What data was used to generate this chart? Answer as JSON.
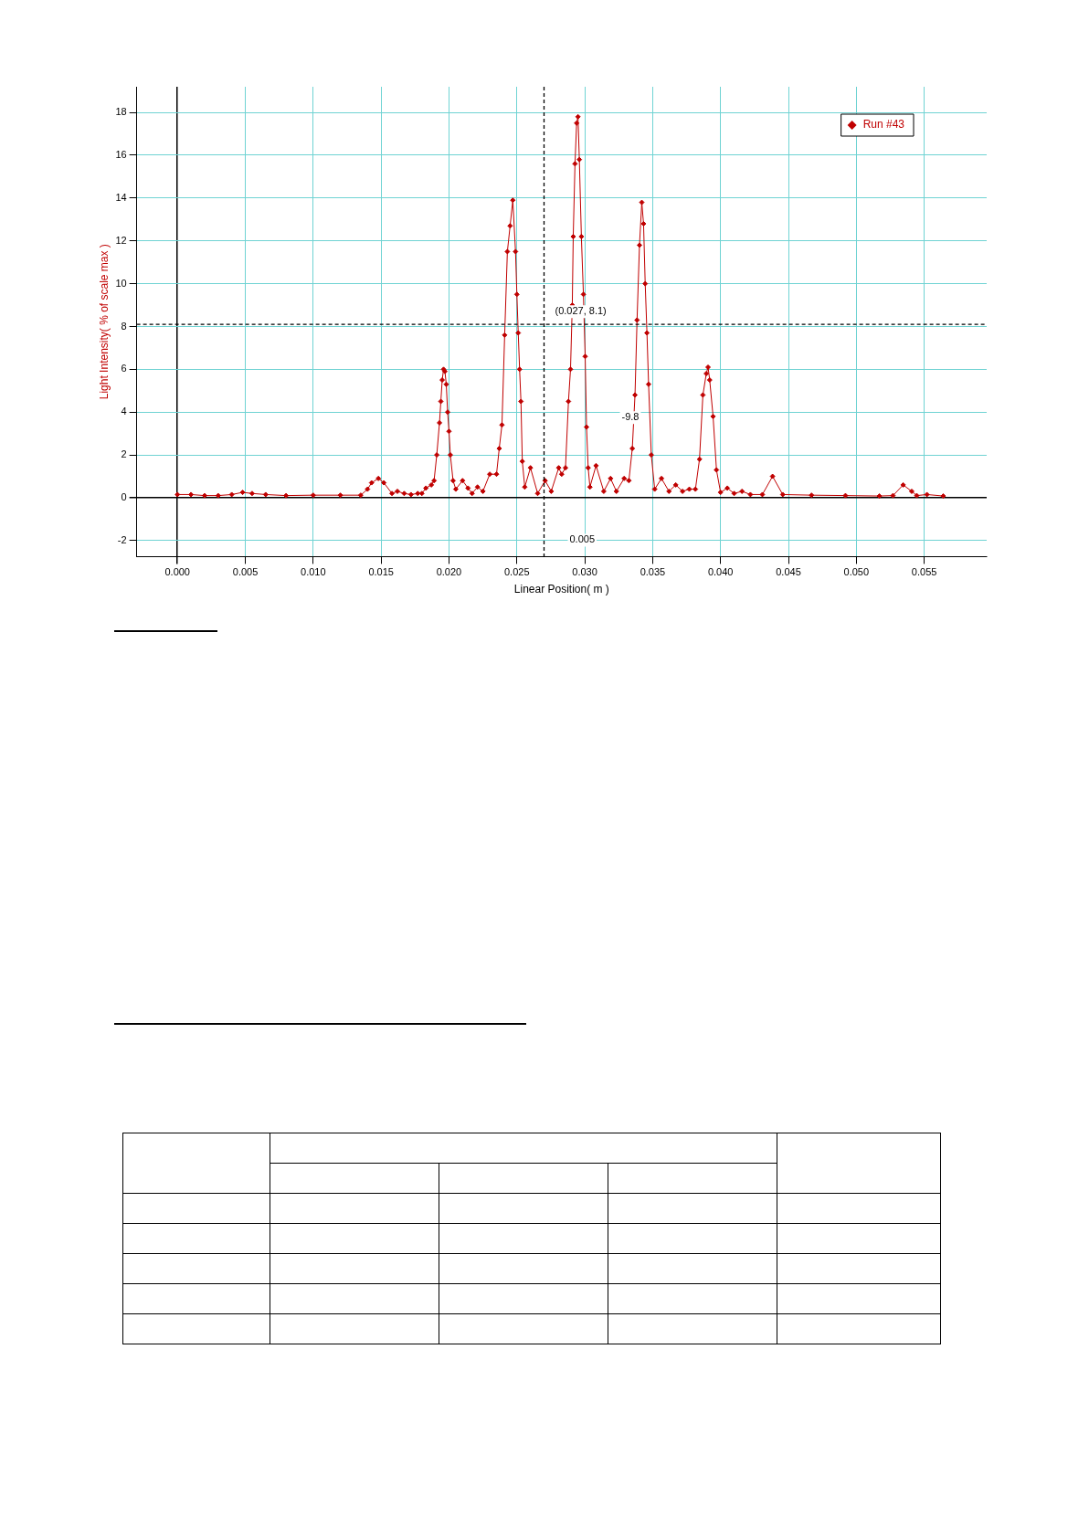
{
  "chart_data": {
    "type": "line",
    "xlabel": "Linear Position( m )",
    "ylabel": "Light Intensity( % of scale max )",
    "xlim": [
      -0.003,
      0.0596
    ],
    "ylim": [
      -2.75,
      19.2
    ],
    "xticks": [
      {
        "value": 0,
        "label": "0.000"
      },
      0.005,
      {
        "value": 0.01,
        "label": "0.010"
      },
      0.015,
      {
        "value": 0.02,
        "label": "0.020"
      },
      0.025,
      {
        "value": 0.03,
        "label": "0.030"
      },
      0.035,
      {
        "value": 0.04,
        "label": "0.040"
      },
      0.045,
      {
        "value": 0.05,
        "label": "0.050"
      },
      0.055
    ],
    "yticks": [
      -2,
      0,
      2,
      4,
      6,
      8,
      10,
      12,
      14,
      16,
      18
    ],
    "grid": true,
    "legend": "top right",
    "marker": "diamond",
    "line_style": "solid",
    "series": [
      {
        "name": "Run #43",
        "color": "#c00000",
        "x": [
          0,
          0.001,
          0.002,
          0.003,
          0.004,
          0.0048,
          0.0055,
          0.0065,
          0.008,
          0.01,
          0.012,
          0.0135,
          0.014,
          0.0143,
          0.0148,
          0.0152,
          0.0158,
          0.0162,
          0.0167,
          0.0172,
          0.0177,
          0.018,
          0.0183,
          0.0187,
          0.0189,
          0.0191,
          0.0193,
          0.0194,
          0.0195,
          0.0196,
          0.0197,
          0.0198,
          0.0199,
          0.02,
          0.0201,
          0.0203,
          0.0205,
          0.021,
          0.0214,
          0.0217,
          0.0221,
          0.0225,
          0.023,
          0.0235,
          0.0237,
          0.0239,
          0.0241,
          0.0243,
          0.0245,
          0.0247,
          0.0249,
          0.025,
          0.0251,
          0.0252,
          0.0253,
          0.0254,
          0.02558,
          0.026,
          0.02653,
          0.02708,
          0.02753,
          0.02808,
          0.0283,
          0.02858,
          0.0288,
          0.02895,
          0.02908,
          0.02915,
          0.02928,
          0.0294,
          0.0295,
          0.0296,
          0.02975,
          0.0299,
          0.03003,
          0.03013,
          0.03025,
          0.03038,
          0.03083,
          0.0314,
          0.0319,
          0.03233,
          0.0329,
          0.03325,
          0.0335,
          0.0337,
          0.03385,
          0.03403,
          0.0342,
          0.03433,
          0.03445,
          0.03458,
          0.0347,
          0.0349,
          0.03515,
          0.03565,
          0.0362,
          0.0367,
          0.0372,
          0.0377,
          0.03815,
          0.03845,
          0.0387,
          0.03895,
          0.03908,
          0.0392,
          0.03945,
          0.0397,
          0.04,
          0.0405,
          0.041,
          0.04158,
          0.0422,
          0.04308,
          0.04383,
          0.04458,
          0.0467,
          0.0492,
          0.0517,
          0.0527,
          0.05345,
          0.05408,
          0.05445,
          0.0552,
          0.0564
        ],
        "values": [
          0.15,
          0.15,
          0.1,
          0.1,
          0.15,
          0.25,
          0.2,
          0.15,
          0.1,
          0.12,
          0.12,
          0.12,
          0.4,
          0.7,
          0.9,
          0.7,
          0.2,
          0.3,
          0.2,
          0.15,
          0.2,
          0.2,
          0.45,
          0.6,
          0.8,
          2.0,
          3.5,
          4.5,
          5.5,
          6.0,
          5.9,
          5.3,
          4.0,
          3.1,
          2.0,
          0.8,
          0.4,
          0.8,
          0.45,
          0.2,
          0.5,
          0.3,
          1.1,
          1.1,
          2.3,
          3.4,
          7.6,
          11.5,
          12.7,
          13.9,
          11.5,
          9.5,
          7.7,
          6.0,
          4.5,
          1.7,
          0.5,
          1.4,
          0.2,
          0.8,
          0.3,
          1.4,
          1.1,
          1.4,
          4.5,
          6.0,
          9.0,
          12.2,
          15.6,
          17.5,
          17.8,
          15.8,
          12.2,
          9.5,
          6.6,
          3.3,
          1.4,
          0.5,
          1.5,
          0.3,
          0.9,
          0.3,
          0.9,
          0.8,
          2.3,
          4.8,
          8.3,
          11.8,
          13.8,
          12.8,
          10.0,
          7.7,
          5.3,
          2.0,
          0.4,
          0.9,
          0.3,
          0.6,
          0.3,
          0.4,
          0.4,
          1.8,
          4.8,
          5.8,
          6.1,
          5.5,
          3.8,
          1.3,
          0.25,
          0.45,
          0.2,
          0.3,
          0.15,
          0.15,
          1.0,
          0.15,
          0.12,
          0.1,
          0.08,
          0.1,
          0.6,
          0.3,
          0.1,
          0.15,
          0.08
        ]
      }
    ],
    "ref_lines": [
      {
        "axis": "x",
        "value": 0.027,
        "color": "#000000",
        "line_style": "dashed",
        "label": "(0.027, 8.1)"
      },
      {
        "axis": "y",
        "value": 8.1,
        "color": "#000000",
        "line_style": "dashed"
      }
    ],
    "annotations": [
      "-9.8",
      "0.005"
    ]
  }
}
